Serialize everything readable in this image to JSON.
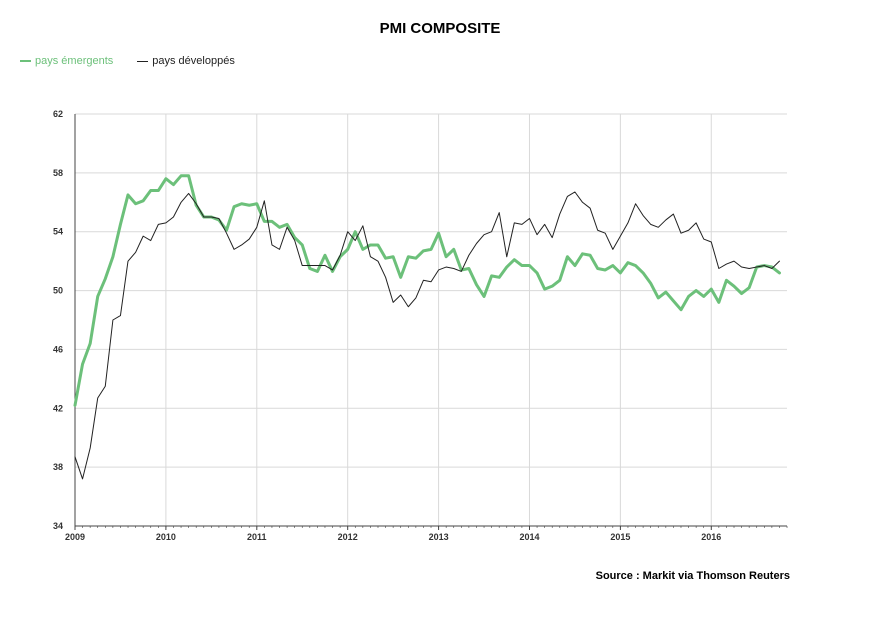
{
  "colors": {
    "emerging": "#6cc07a",
    "developed": "#222222",
    "grid": "#d9d9d9",
    "axis": "#444444"
  },
  "chart_data": {
    "type": "line",
    "title": "PMI COMPOSITE",
    "source": "Source : Markit via Thomson Reuters",
    "xlabel": "",
    "ylabel": "",
    "ylim": [
      34,
      62
    ],
    "yticks": [
      34,
      38,
      42,
      46,
      50,
      54,
      58,
      62
    ],
    "xlim": [
      2009.0,
      2016.833
    ],
    "xticks": [
      {
        "value": 2009,
        "label": "2009"
      },
      {
        "value": 2010,
        "label": "2010"
      },
      {
        "value": 2011,
        "label": "2011"
      },
      {
        "value": 2012,
        "label": "2012"
      },
      {
        "value": 2013,
        "label": "2013"
      },
      {
        "value": 2014,
        "label": "2014"
      },
      {
        "value": 2015,
        "label": "2015"
      },
      {
        "value": 2016,
        "label": "2016"
      }
    ],
    "grid": true,
    "legend": "top-left",
    "series": [
      {
        "name": "pays émergents",
        "color": "#6cc07a",
        "x": [
          2009.0,
          2009.083,
          2009.167,
          2009.25,
          2009.333,
          2009.417,
          2009.5,
          2009.583,
          2009.667,
          2009.75,
          2009.833,
          2009.917,
          2010.0,
          2010.083,
          2010.167,
          2010.25,
          2010.333,
          2010.417,
          2010.5,
          2010.583,
          2010.667,
          2010.75,
          2010.833,
          2010.917,
          2011.0,
          2011.083,
          2011.167,
          2011.25,
          2011.333,
          2011.417,
          2011.5,
          2011.583,
          2011.667,
          2011.75,
          2011.833,
          2011.917,
          2012.0,
          2012.083,
          2012.167,
          2012.25,
          2012.333,
          2012.417,
          2012.5,
          2012.583,
          2012.667,
          2012.75,
          2012.833,
          2012.917,
          2013.0,
          2013.083,
          2013.167,
          2013.25,
          2013.333,
          2013.417,
          2013.5,
          2013.583,
          2013.667,
          2013.75,
          2013.833,
          2013.917,
          2014.0,
          2014.083,
          2014.167,
          2014.25,
          2014.333,
          2014.417,
          2014.5,
          2014.583,
          2014.667,
          2014.75,
          2014.833,
          2014.917,
          2015.0,
          2015.083,
          2015.167,
          2015.25,
          2015.333,
          2015.417,
          2015.5,
          2015.583,
          2015.667,
          2015.75,
          2015.833,
          2015.917,
          2016.0,
          2016.083,
          2016.167,
          2016.25,
          2016.333,
          2016.417,
          2016.5,
          2016.583,
          2016.667,
          2016.75
        ],
        "values": [
          42.2,
          45.0,
          46.4,
          49.6,
          50.8,
          52.3,
          54.5,
          56.5,
          55.9,
          56.1,
          56.8,
          56.8,
          57.6,
          57.2,
          57.8,
          57.8,
          55.8,
          55.0,
          55.0,
          54.8,
          54.1,
          55.7,
          55.9,
          55.8,
          55.9,
          54.7,
          54.7,
          54.3,
          54.5,
          53.6,
          53.1,
          51.5,
          51.3,
          52.4,
          51.3,
          52.3,
          52.8,
          54.0,
          52.8,
          53.1,
          53.1,
          52.2,
          52.3,
          50.9,
          52.3,
          52.2,
          52.7,
          52.8,
          53.9,
          52.3,
          52.8,
          51.4,
          51.5,
          50.4,
          49.6,
          51.0,
          50.9,
          51.6,
          52.1,
          51.7,
          51.7,
          51.2,
          50.1,
          50.3,
          50.7,
          52.3,
          51.7,
          52.5,
          52.4,
          51.5,
          51.4,
          51.7,
          51.2,
          51.9,
          51.7,
          51.2,
          50.5,
          49.5,
          49.9,
          49.3,
          48.7,
          49.6,
          50.0,
          49.6,
          50.1,
          49.2,
          50.7,
          50.3,
          49.8,
          50.2,
          51.6,
          51.7,
          51.6,
          51.2
        ]
      },
      {
        "name": "pays développés",
        "color": "#222222",
        "x": [
          2009.0,
          2009.083,
          2009.167,
          2009.25,
          2009.333,
          2009.417,
          2009.5,
          2009.583,
          2009.667,
          2009.75,
          2009.833,
          2009.917,
          2010.0,
          2010.083,
          2010.167,
          2010.25,
          2010.333,
          2010.417,
          2010.5,
          2010.583,
          2010.667,
          2010.75,
          2010.833,
          2010.917,
          2011.0,
          2011.083,
          2011.167,
          2011.25,
          2011.333,
          2011.417,
          2011.5,
          2011.583,
          2011.667,
          2011.75,
          2011.833,
          2011.917,
          2012.0,
          2012.083,
          2012.167,
          2012.25,
          2012.333,
          2012.417,
          2012.5,
          2012.583,
          2012.667,
          2012.75,
          2012.833,
          2012.917,
          2013.0,
          2013.083,
          2013.167,
          2013.25,
          2013.333,
          2013.417,
          2013.5,
          2013.583,
          2013.667,
          2013.75,
          2013.833,
          2013.917,
          2014.0,
          2014.083,
          2014.167,
          2014.25,
          2014.333,
          2014.417,
          2014.5,
          2014.583,
          2014.667,
          2014.75,
          2014.833,
          2014.917,
          2015.0,
          2015.083,
          2015.167,
          2015.25,
          2015.333,
          2015.417,
          2015.5,
          2015.583,
          2015.667,
          2015.75,
          2015.833,
          2015.917,
          2016.0,
          2016.083,
          2016.167,
          2016.25,
          2016.333,
          2016.417,
          2016.5,
          2016.583,
          2016.667,
          2016.75
        ],
        "values": [
          38.7,
          37.2,
          39.3,
          42.7,
          43.5,
          48.0,
          48.3,
          52.0,
          52.6,
          53.7,
          53.4,
          54.5,
          54.6,
          55.0,
          56.0,
          56.6,
          55.9,
          55.0,
          55.0,
          54.9,
          53.9,
          52.8,
          53.1,
          53.5,
          54.3,
          56.1,
          53.1,
          52.8,
          54.3,
          53.4,
          51.7,
          51.7,
          51.7,
          51.7,
          51.4,
          52.4,
          54.0,
          53.4,
          54.4,
          52.3,
          52.0,
          50.9,
          49.2,
          49.7,
          48.9,
          49.5,
          50.7,
          50.6,
          51.4,
          51.6,
          51.5,
          51.3,
          52.4,
          53.2,
          53.8,
          54.0,
          55.3,
          52.3,
          54.6,
          54.5,
          54.9,
          53.8,
          54.5,
          53.6,
          55.2,
          56.4,
          56.7,
          56.0,
          55.6,
          54.1,
          53.9,
          52.8,
          53.7,
          54.6,
          55.9,
          55.1,
          54.5,
          54.3,
          54.8,
          55.2,
          53.9,
          54.1,
          54.6,
          53.5,
          53.3,
          51.5,
          51.8,
          52.0,
          51.6,
          51.5,
          51.6,
          51.7,
          51.5,
          52.0
        ]
      }
    ]
  }
}
